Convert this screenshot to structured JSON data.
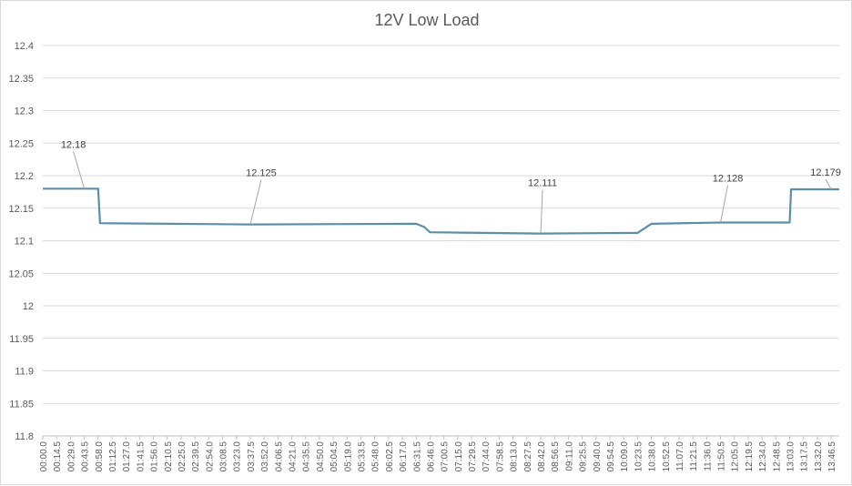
{
  "chart_data": {
    "type": "line",
    "title": "12V Low Load",
    "xlabel": "",
    "ylabel": "",
    "ylim": [
      11.8,
      12.4
    ],
    "grid": true,
    "legend": "none",
    "y_ticks": [
      "12.4",
      "12.35",
      "12.3",
      "12.25",
      "12.2",
      "12.15",
      "12.1",
      "12.05",
      "12",
      "11.95",
      "11.9",
      "11.85",
      "11.8"
    ],
    "x_ticks": [
      "00:00.0",
      "00:14.5",
      "00:29.0",
      "00:43.5",
      "00:58.0",
      "01:12.5",
      "01:27.0",
      "01:41.5",
      "01:56.0",
      "02:10.5",
      "02:25.0",
      "02:39.5",
      "02:54.0",
      "03:08.5",
      "03:23.0",
      "03:37.5",
      "03:52.0",
      "04:06.5",
      "04:21.0",
      "04:35.5",
      "04:50.0",
      "05:04.5",
      "05:19.0",
      "05:33.5",
      "05:48.0",
      "06:02.5",
      "06:17.0",
      "06:31.5",
      "06:46.0",
      "07:00.5",
      "07:15.0",
      "07:29.5",
      "07:44.0",
      "07:58.5",
      "08:13.0",
      "08:27.5",
      "08:42.0",
      "08:56.5",
      "09:11.0",
      "09:25.5",
      "09:40.0",
      "09:54.5",
      "10:09.0",
      "10:23.5",
      "10:38.0",
      "10:52.5",
      "11:07.0",
      "11:21.5",
      "11:36.0",
      "11:50.5",
      "12:05.0",
      "12:19.5",
      "12:34.0",
      "12:48.5",
      "13:03.0",
      "13:17.5",
      "13:32.0",
      "13:46.5"
    ],
    "series": [
      {
        "color": "#5b8fa8",
        "points": [
          [
            "00:00.0",
            12.18
          ],
          [
            "00:58.0",
            12.18
          ],
          [
            "01:00.0",
            12.127
          ],
          [
            "03:37.5",
            12.125
          ],
          [
            "06:31.5",
            12.126
          ],
          [
            "06:40.0",
            12.121
          ],
          [
            "06:46.0",
            12.113
          ],
          [
            "08:42.0",
            12.111
          ],
          [
            "10:23.5",
            12.112
          ],
          [
            "10:38.0",
            12.126
          ],
          [
            "11:50.5",
            12.128
          ],
          [
            "13:03.0",
            12.128
          ],
          [
            "13:04.5",
            12.179
          ],
          [
            "13:55.0",
            12.179
          ]
        ]
      }
    ],
    "data_labels": [
      {
        "x": "00:43.5",
        "y": 12.18,
        "text": "12.18"
      },
      {
        "x": "03:37.5",
        "y": 12.125,
        "text": "12.125"
      },
      {
        "x": "08:42.0",
        "y": 12.111,
        "text": "12.111"
      },
      {
        "x": "11:50.5",
        "y": 12.128,
        "text": "12.128"
      },
      {
        "x": "13:46.5",
        "y": 12.179,
        "text": "12.179"
      }
    ]
  }
}
